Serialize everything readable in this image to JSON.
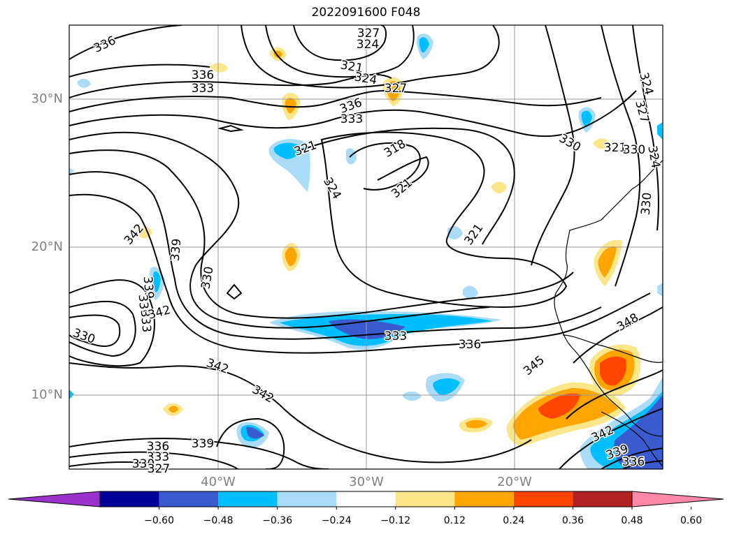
{
  "title": "2022091600 F048",
  "lat_labels": [
    "30°N",
    "20°N",
    "10°N"
  ],
  "lon_labels": [
    "40°W",
    "30°W",
    "20°W"
  ],
  "contour_labels": [
    "327",
    "324",
    "336",
    "321",
    "324",
    "327",
    "336",
    "333",
    "336",
    "333",
    "321",
    "318",
    "324",
    "321",
    "321",
    "324",
    "327",
    "330",
    "321",
    "330",
    "324",
    "330",
    "342",
    "339",
    "330",
    "339",
    "336",
    "333",
    "342",
    "330",
    "342",
    "342",
    "333",
    "336",
    "345",
    "348",
    "342",
    "339",
    "336",
    "336",
    "333",
    "330",
    "327",
    "339"
  ],
  "colorbar": {
    "ticks": [
      "−0.60",
      "−0.48",
      "−0.36",
      "−0.24",
      "−0.12",
      "0.12",
      "0.24",
      "0.36",
      "0.48",
      "0.60"
    ],
    "colors": [
      "#9933cc",
      "#000099",
      "#3a5bd0",
      "#00bfff",
      "#aadcf8",
      "#ffffff",
      "#fce68a",
      "#ffa500",
      "#ff4500",
      "#b22222",
      "#ff88aa"
    ],
    "extend": "both"
  }
}
